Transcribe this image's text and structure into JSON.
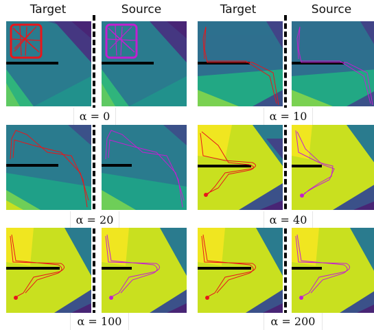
{
  "headers": {
    "target_left": "Target",
    "source_left": "Source",
    "target_right": "Target",
    "source_right": "Source"
  },
  "alpha_symbol": "α",
  "labels": [
    {
      "alpha": "α = 0"
    },
    {
      "alpha": "α = 10"
    },
    {
      "alpha": "α = 20"
    },
    {
      "alpha": "α = 40"
    },
    {
      "alpha": "α = 100"
    },
    {
      "alpha": "α = 200"
    }
  ],
  "colors": {
    "target_trajectory": "#e8161a",
    "source_trajectory": "#c21fd0",
    "wall": "#000000"
  }
}
